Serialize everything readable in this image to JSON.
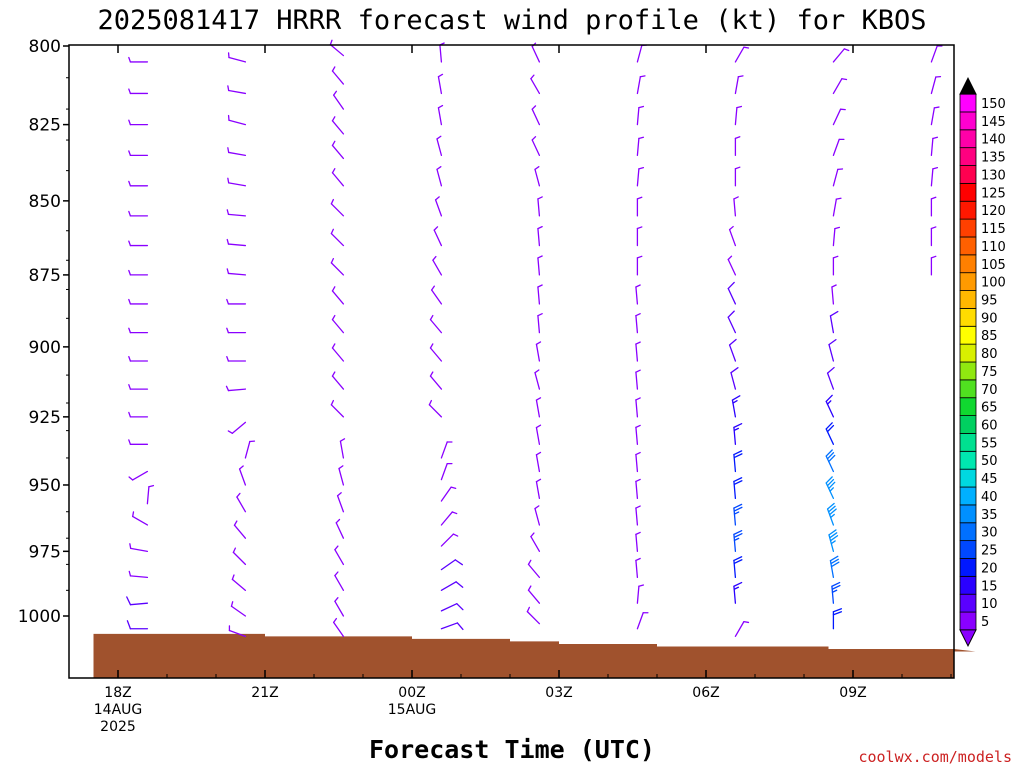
{
  "chart_data": {
    "type": "wind_barb_profile",
    "title": "2025081417 HRRR forecast wind profile (kt) for KBOS",
    "xlabel": "Forecast Time (UTC)",
    "credit": "coolwx.com/models",
    "y_ticks": [
      "800",
      "825",
      "850",
      "875",
      "900",
      "925",
      "950",
      "975",
      "1000"
    ],
    "y_values": [
      800,
      825,
      850,
      875,
      900,
      925,
      950,
      975,
      1000
    ],
    "x_ticks": [
      {
        "lines": [
          "18Z",
          "14AUG",
          "2025"
        ],
        "hour": 0
      },
      {
        "lines": [
          "21Z"
        ],
        "hour": 3
      },
      {
        "lines": [
          "00Z",
          "15AUG"
        ],
        "hour": 6
      },
      {
        "lines": [
          "03Z"
        ],
        "hour": 9
      },
      {
        "lines": [
          "06Z"
        ],
        "hour": 12
      },
      {
        "lines": [
          "09Z"
        ],
        "hour": 15
      }
    ],
    "ylim": [
      800,
      1010
    ],
    "colorbar": {
      "labels": [
        "5",
        "10",
        "15",
        "20",
        "25",
        "30",
        "35",
        "40",
        "45",
        "50",
        "55",
        "60",
        "65",
        "70",
        "75",
        "80",
        "85",
        "90",
        "95",
        "100",
        "105",
        "110",
        "115",
        "120",
        "125",
        "130",
        "135",
        "140",
        "145",
        "150"
      ],
      "colors": [
        "#8a00ff",
        "#5a00ff",
        "#2a00ff",
        "#0018ff",
        "#0048ff",
        "#0070ff",
        "#0090ff",
        "#00b0ff",
        "#00d8e0",
        "#00e8b0",
        "#00e090",
        "#00d060",
        "#10d830",
        "#50e020",
        "#90e810",
        "#d8f000",
        "#ffff00",
        "#ffdc00",
        "#ffb800",
        "#ff9a00",
        "#ff8000",
        "#ff6000",
        "#ff4000",
        "#ff1800",
        "#ff0000",
        "#ff0050",
        "#ff0080",
        "#ff00a8",
        "#ff00d0",
        "#ff00ff"
      ]
    },
    "surface_pressure": [
      {
        "hour": -0.5,
        "p": 1007
      },
      {
        "hour": 3,
        "p": 1008
      },
      {
        "hour": 6,
        "p": 1009
      },
      {
        "hour": 8,
        "p": 1010
      },
      {
        "hour": 9,
        "p": 1011
      },
      {
        "hour": 11,
        "p": 1012
      },
      {
        "hour": 14.5,
        "p": 1013
      },
      {
        "hour": 17.5,
        "p": 1014
      }
    ],
    "series": [
      {
        "hour": 0.6,
        "levels": [
          {
            "p": 805,
            "dir": 270,
            "spd": 5
          },
          {
            "p": 815,
            "dir": 270,
            "spd": 5
          },
          {
            "p": 825,
            "dir": 270,
            "spd": 5
          },
          {
            "p": 835,
            "dir": 270,
            "spd": 5
          },
          {
            "p": 845,
            "dir": 270,
            "spd": 5
          },
          {
            "p": 855,
            "dir": 270,
            "spd": 5
          },
          {
            "p": 865,
            "dir": 270,
            "spd": 5
          },
          {
            "p": 875,
            "dir": 270,
            "spd": 5
          },
          {
            "p": 885,
            "dir": 270,
            "spd": 5
          },
          {
            "p": 895,
            "dir": 270,
            "spd": 5
          },
          {
            "p": 905,
            "dir": 270,
            "spd": 5
          },
          {
            "p": 915,
            "dir": 270,
            "spd": 5
          },
          {
            "p": 925,
            "dir": 270,
            "spd": 5
          },
          {
            "p": 935,
            "dir": 270,
            "spd": 5
          },
          {
            "p": 945,
            "dir": 240,
            "spd": 5
          },
          {
            "p": 957,
            "dir": 5,
            "spd": 5
          },
          {
            "p": 965,
            "dir": 300,
            "spd": 5
          },
          {
            "p": 975,
            "dir": 280,
            "spd": 5
          },
          {
            "p": 985,
            "dir": 275,
            "spd": 5
          },
          {
            "p": 995,
            "dir": 265,
            "spd": 10
          },
          {
            "p": 1005,
            "dir": 270,
            "spd": 10
          }
        ]
      },
      {
        "hour": 2.6,
        "levels": [
          {
            "p": 805,
            "dir": 285,
            "spd": 5
          },
          {
            "p": 815,
            "dir": 280,
            "spd": 5
          },
          {
            "p": 825,
            "dir": 285,
            "spd": 5
          },
          {
            "p": 835,
            "dir": 280,
            "spd": 5
          },
          {
            "p": 845,
            "dir": 280,
            "spd": 5
          },
          {
            "p": 855,
            "dir": 275,
            "spd": 5
          },
          {
            "p": 865,
            "dir": 275,
            "spd": 5
          },
          {
            "p": 875,
            "dir": 275,
            "spd": 5
          },
          {
            "p": 885,
            "dir": 270,
            "spd": 5
          },
          {
            "p": 895,
            "dir": 270,
            "spd": 5
          },
          {
            "p": 905,
            "dir": 270,
            "spd": 5
          },
          {
            "p": 915,
            "dir": 265,
            "spd": 5
          },
          {
            "p": 927,
            "dir": 230,
            "spd": 5
          },
          {
            "p": 940,
            "dir": 15,
            "spd": 5
          },
          {
            "p": 950,
            "dir": 340,
            "spd": 5
          },
          {
            "p": 960,
            "dir": 330,
            "spd": 5
          },
          {
            "p": 970,
            "dir": 320,
            "spd": 5
          },
          {
            "p": 980,
            "dir": 315,
            "spd": 5
          },
          {
            "p": 990,
            "dir": 310,
            "spd": 5
          },
          {
            "p": 1000,
            "dir": 305,
            "spd": 5
          },
          {
            "p": 1008,
            "dir": 290,
            "spd": 5
          }
        ]
      },
      {
        "hour": 4.6,
        "levels": [
          {
            "p": 803,
            "dir": 310,
            "spd": 5
          },
          {
            "p": 812,
            "dir": 320,
            "spd": 5
          },
          {
            "p": 820,
            "dir": 325,
            "spd": 5
          },
          {
            "p": 828,
            "dir": 320,
            "spd": 5
          },
          {
            "p": 836,
            "dir": 320,
            "spd": 5
          },
          {
            "p": 845,
            "dir": 320,
            "spd": 5
          },
          {
            "p": 855,
            "dir": 315,
            "spd": 5
          },
          {
            "p": 865,
            "dir": 315,
            "spd": 5
          },
          {
            "p": 875,
            "dir": 315,
            "spd": 5
          },
          {
            "p": 885,
            "dir": 320,
            "spd": 5
          },
          {
            "p": 895,
            "dir": 320,
            "spd": 5
          },
          {
            "p": 905,
            "dir": 320,
            "spd": 5
          },
          {
            "p": 915,
            "dir": 320,
            "spd": 5
          },
          {
            "p": 925,
            "dir": 315,
            "spd": 5
          },
          {
            "p": 940,
            "dir": 350,
            "spd": 5
          },
          {
            "p": 950,
            "dir": 345,
            "spd": 5
          },
          {
            "p": 960,
            "dir": 340,
            "spd": 5
          },
          {
            "p": 970,
            "dir": 335,
            "spd": 5
          },
          {
            "p": 980,
            "dir": 330,
            "spd": 5
          },
          {
            "p": 990,
            "dir": 330,
            "spd": 5
          },
          {
            "p": 1000,
            "dir": 330,
            "spd": 5
          },
          {
            "p": 1008,
            "dir": 325,
            "spd": 5
          }
        ]
      },
      {
        "hour": 6.6,
        "levels": [
          {
            "p": 805,
            "dir": 355,
            "spd": 5
          },
          {
            "p": 815,
            "dir": 350,
            "spd": 5
          },
          {
            "p": 825,
            "dir": 350,
            "spd": 5
          },
          {
            "p": 835,
            "dir": 345,
            "spd": 5
          },
          {
            "p": 845,
            "dir": 345,
            "spd": 5
          },
          {
            "p": 855,
            "dir": 340,
            "spd": 5
          },
          {
            "p": 865,
            "dir": 335,
            "spd": 5
          },
          {
            "p": 875,
            "dir": 330,
            "spd": 5
          },
          {
            "p": 885,
            "dir": 325,
            "spd": 5
          },
          {
            "p": 895,
            "dir": 320,
            "spd": 5
          },
          {
            "p": 905,
            "dir": 320,
            "spd": 5
          },
          {
            "p": 915,
            "dir": 320,
            "spd": 5
          },
          {
            "p": 925,
            "dir": 315,
            "spd": 5
          },
          {
            "p": 940,
            "dir": 20,
            "spd": 5
          },
          {
            "p": 948,
            "dir": 20,
            "spd": 5
          },
          {
            "p": 956,
            "dir": 35,
            "spd": 5
          },
          {
            "p": 965,
            "dir": 40,
            "spd": 5
          },
          {
            "p": 973,
            "dir": 45,
            "spd": 5
          },
          {
            "p": 982,
            "dir": 55,
            "spd": 10
          },
          {
            "p": 990,
            "dir": 60,
            "spd": 10
          },
          {
            "p": 998,
            "dir": 65,
            "spd": 10
          },
          {
            "p": 1005,
            "dir": 70,
            "spd": 10
          }
        ]
      },
      {
        "hour": 8.6,
        "levels": [
          {
            "p": 805,
            "dir": 335,
            "spd": 5
          },
          {
            "p": 815,
            "dir": 330,
            "spd": 5
          },
          {
            "p": 825,
            "dir": 335,
            "spd": 5
          },
          {
            "p": 835,
            "dir": 335,
            "spd": 5
          },
          {
            "p": 845,
            "dir": 345,
            "spd": 5
          },
          {
            "p": 855,
            "dir": 355,
            "spd": 5
          },
          {
            "p": 865,
            "dir": 355,
            "spd": 5
          },
          {
            "p": 875,
            "dir": 355,
            "spd": 5
          },
          {
            "p": 885,
            "dir": 355,
            "spd": 5
          },
          {
            "p": 895,
            "dir": 355,
            "spd": 5
          },
          {
            "p": 905,
            "dir": 350,
            "spd": 5
          },
          {
            "p": 915,
            "dir": 345,
            "spd": 5
          },
          {
            "p": 925,
            "dir": 350,
            "spd": 5
          },
          {
            "p": 935,
            "dir": 350,
            "spd": 5
          },
          {
            "p": 945,
            "dir": 350,
            "spd": 5
          },
          {
            "p": 955,
            "dir": 350,
            "spd": 5
          },
          {
            "p": 965,
            "dir": 345,
            "spd": 5
          },
          {
            "p": 975,
            "dir": 330,
            "spd": 5
          },
          {
            "p": 985,
            "dir": 320,
            "spd": 5
          },
          {
            "p": 995,
            "dir": 320,
            "spd": 5
          },
          {
            "p": 1003,
            "dir": 315,
            "spd": 5
          }
        ]
      },
      {
        "hour": 10.6,
        "levels": [
          {
            "p": 805,
            "dir": 15,
            "spd": 5
          },
          {
            "p": 815,
            "dir": 10,
            "spd": 5
          },
          {
            "p": 825,
            "dir": 5,
            "spd": 5
          },
          {
            "p": 835,
            "dir": 5,
            "spd": 5
          },
          {
            "p": 845,
            "dir": 5,
            "spd": 5
          },
          {
            "p": 855,
            "dir": 0,
            "spd": 5
          },
          {
            "p": 865,
            "dir": 0,
            "spd": 5
          },
          {
            "p": 875,
            "dir": 0,
            "spd": 5
          },
          {
            "p": 885,
            "dir": 355,
            "spd": 5
          },
          {
            "p": 895,
            "dir": 355,
            "spd": 5
          },
          {
            "p": 905,
            "dir": 355,
            "spd": 5
          },
          {
            "p": 915,
            "dir": 355,
            "spd": 5
          },
          {
            "p": 925,
            "dir": 355,
            "spd": 5
          },
          {
            "p": 935,
            "dir": 355,
            "spd": 5
          },
          {
            "p": 945,
            "dir": 355,
            "spd": 5
          },
          {
            "p": 955,
            "dir": 355,
            "spd": 5
          },
          {
            "p": 965,
            "dir": 355,
            "spd": 5
          },
          {
            "p": 975,
            "dir": 355,
            "spd": 5
          },
          {
            "p": 985,
            "dir": 355,
            "spd": 5
          },
          {
            "p": 995,
            "dir": 5,
            "spd": 5
          },
          {
            "p": 1005,
            "dir": 20,
            "spd": 5
          }
        ]
      },
      {
        "hour": 12.6,
        "levels": [
          {
            "p": 805,
            "dir": 30,
            "spd": 5
          },
          {
            "p": 815,
            "dir": 10,
            "spd": 5
          },
          {
            "p": 825,
            "dir": 5,
            "spd": 5
          },
          {
            "p": 835,
            "dir": 0,
            "spd": 5
          },
          {
            "p": 845,
            "dir": 0,
            "spd": 5
          },
          {
            "p": 855,
            "dir": 355,
            "spd": 5
          },
          {
            "p": 865,
            "dir": 340,
            "spd": 5
          },
          {
            "p": 875,
            "dir": 335,
            "spd": 5
          },
          {
            "p": 885,
            "dir": 335,
            "spd": 10
          },
          {
            "p": 895,
            "dir": 335,
            "spd": 10
          },
          {
            "p": 905,
            "dir": 340,
            "spd": 10
          },
          {
            "p": 915,
            "dir": 345,
            "spd": 10
          },
          {
            "p": 925,
            "dir": 350,
            "spd": 15
          },
          {
            "p": 935,
            "dir": 355,
            "spd": 15
          },
          {
            "p": 945,
            "dir": 355,
            "spd": 20
          },
          {
            "p": 955,
            "dir": 355,
            "spd": 20
          },
          {
            "p": 965,
            "dir": 355,
            "spd": 25
          },
          {
            "p": 975,
            "dir": 355,
            "spd": 25
          },
          {
            "p": 985,
            "dir": 355,
            "spd": 20
          },
          {
            "p": 995,
            "dir": 355,
            "spd": 15
          },
          {
            "p": 1008,
            "dir": 30,
            "spd": 5
          }
        ]
      },
      {
        "hour": 14.6,
        "levels": [
          {
            "p": 805,
            "dir": 40,
            "spd": 5
          },
          {
            "p": 815,
            "dir": 30,
            "spd": 5
          },
          {
            "p": 825,
            "dir": 25,
            "spd": 5
          },
          {
            "p": 835,
            "dir": 20,
            "spd": 5
          },
          {
            "p": 845,
            "dir": 15,
            "spd": 5
          },
          {
            "p": 855,
            "dir": 10,
            "spd": 5
          },
          {
            "p": 865,
            "dir": 5,
            "spd": 5
          },
          {
            "p": 875,
            "dir": 0,
            "spd": 5
          },
          {
            "p": 885,
            "dir": 355,
            "spd": 5
          },
          {
            "p": 895,
            "dir": 350,
            "spd": 10
          },
          {
            "p": 905,
            "dir": 345,
            "spd": 10
          },
          {
            "p": 915,
            "dir": 340,
            "spd": 10
          },
          {
            "p": 925,
            "dir": 335,
            "spd": 15
          },
          {
            "p": 935,
            "dir": 335,
            "spd": 20
          },
          {
            "p": 945,
            "dir": 335,
            "spd": 30
          },
          {
            "p": 955,
            "dir": 335,
            "spd": 35
          },
          {
            "p": 965,
            "dir": 340,
            "spd": 35
          },
          {
            "p": 975,
            "dir": 345,
            "spd": 35
          },
          {
            "p": 985,
            "dir": 350,
            "spd": 30
          },
          {
            "p": 995,
            "dir": 355,
            "spd": 25
          },
          {
            "p": 1005,
            "dir": 360,
            "spd": 20
          }
        ]
      },
      {
        "hour": 16.6,
        "levels": [
          {
            "p": 805,
            "dir": 20,
            "spd": 5
          },
          {
            "p": 815,
            "dir": 15,
            "spd": 5
          },
          {
            "p": 825,
            "dir": 10,
            "spd": 5
          },
          {
            "p": 835,
            "dir": 5,
            "spd": 5
          },
          {
            "p": 845,
            "dir": 5,
            "spd": 5
          },
          {
            "p": 855,
            "dir": 0,
            "spd": 5
          },
          {
            "p": 865,
            "dir": 0,
            "spd": 5
          },
          {
            "p": 875,
            "dir": 0,
            "spd": 5
          }
        ]
      }
    ]
  }
}
